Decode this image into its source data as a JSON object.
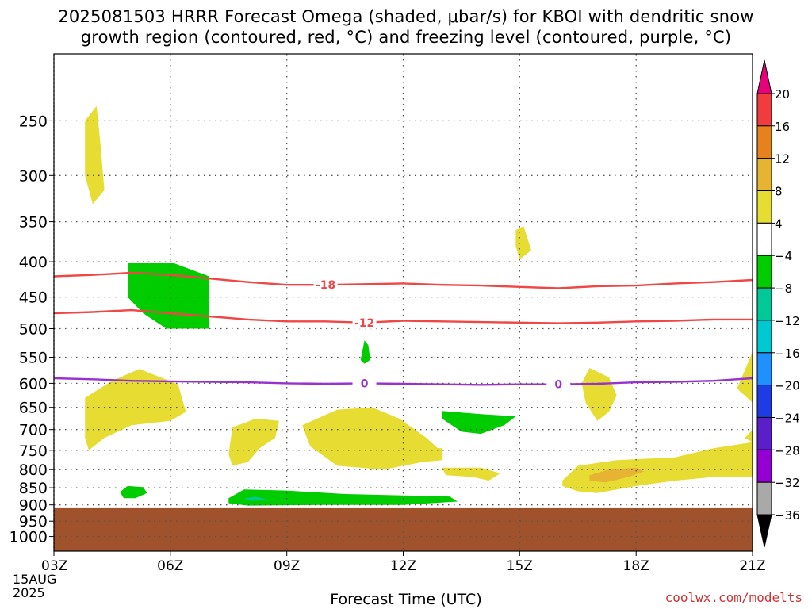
{
  "title_line1": "2025081503 HRRR Forecast Omega (shaded, μbar/s) for KBOI with dendritic snow",
  "title_line2": "growth region (contoured, red, °C) and freezing level (contoured, purple, °C)",
  "credit": "coolwx.com/modelts",
  "chart_data": {
    "type": "area",
    "xlabel": "Forecast Time (UTC)",
    "x_ticks": [
      {
        "hour": 3,
        "label": "03Z"
      },
      {
        "hour": 6,
        "label": "06Z"
      },
      {
        "hour": 9,
        "label": "09Z"
      },
      {
        "hour": 12,
        "label": "12Z"
      },
      {
        "hour": 15,
        "label": "15Z"
      },
      {
        "hour": 18,
        "label": "18Z"
      },
      {
        "hour": 21,
        "label": "21Z"
      }
    ],
    "date_label_1": "15AUG",
    "date_label_2": "2025",
    "xlim": [
      3,
      21
    ],
    "ylim": [
      1050,
      200
    ],
    "y_ticks": [
      250,
      300,
      350,
      400,
      450,
      500,
      550,
      600,
      650,
      700,
      750,
      800,
      850,
      900,
      950,
      1000
    ],
    "grid": true,
    "terrain": {
      "top_hPa": 910,
      "color": "#a0522d"
    },
    "colorbar": {
      "levels": [
        -36,
        -32,
        -28,
        -24,
        -20,
        -16,
        -12,
        -8,
        -4,
        4,
        8,
        12,
        16,
        20
      ],
      "colors": [
        "#000000",
        "#a9a9a9",
        "#9400d3",
        "#5a1fc8",
        "#1e3ce6",
        "#1e90ff",
        "#00c8d2",
        "#00c896",
        "#00cc00",
        "#ffffff",
        "#e6dc32",
        "#e6b432",
        "#e6821e",
        "#f03c3c",
        "#e6007a"
      ]
    },
    "omega_regions": [
      {
        "level": "4-8",
        "color": "#e6dc32",
        "points": [
          [
            3.8,
            250
          ],
          [
            4.1,
            238
          ],
          [
            4.2,
            270
          ],
          [
            4.3,
            315
          ],
          [
            4.0,
            330
          ],
          [
            3.8,
            300
          ]
        ]
      },
      {
        "level": "4-8",
        "color": "#e6dc32",
        "points": [
          [
            14.9,
            360
          ],
          [
            15.1,
            355
          ],
          [
            15.3,
            385
          ],
          [
            15.0,
            397
          ],
          [
            14.9,
            380
          ]
        ]
      },
      {
        "level": "-4to-8",
        "color": "#00cc00",
        "points": [
          [
            4.9,
            402
          ],
          [
            6.1,
            402
          ],
          [
            7.0,
            420
          ],
          [
            7.0,
            500
          ],
          [
            5.9,
            500
          ],
          [
            5.3,
            475
          ],
          [
            4.9,
            450
          ]
        ]
      },
      {
        "level": "-4to-8",
        "color": "#00cc00",
        "points": [
          [
            11.0,
            520
          ],
          [
            11.1,
            528
          ],
          [
            11.15,
            555
          ],
          [
            11.0,
            562
          ],
          [
            10.9,
            555
          ]
        ]
      },
      {
        "level": "4-8",
        "color": "#e6dc32",
        "points": [
          [
            3.8,
            630
          ],
          [
            4.5,
            595
          ],
          [
            5.2,
            572
          ],
          [
            6.2,
            602
          ],
          [
            6.4,
            660
          ],
          [
            6.0,
            680
          ],
          [
            5.0,
            690
          ],
          [
            4.3,
            720
          ],
          [
            3.9,
            750
          ],
          [
            3.8,
            720
          ]
        ]
      },
      {
        "level": "4-8",
        "color": "#e6dc32",
        "points": [
          [
            7.6,
            695
          ],
          [
            8.2,
            675
          ],
          [
            8.8,
            680
          ],
          [
            8.7,
            720
          ],
          [
            8.3,
            745
          ],
          [
            8.0,
            780
          ],
          [
            7.6,
            790
          ],
          [
            7.5,
            760
          ]
        ]
      },
      {
        "level": "4-8",
        "color": "#e6dc32",
        "points": [
          [
            9.4,
            690
          ],
          [
            10.3,
            655
          ],
          [
            11.2,
            650
          ],
          [
            11.9,
            675
          ],
          [
            12.6,
            720
          ],
          [
            13.0,
            755
          ],
          [
            13.0,
            775
          ],
          [
            12.5,
            780
          ],
          [
            11.5,
            800
          ],
          [
            10.3,
            790
          ],
          [
            9.6,
            740
          ]
        ]
      },
      {
        "level": "4-8",
        "color": "#e6dc32",
        "points": [
          [
            12.0,
            740
          ],
          [
            13.0,
            745
          ],
          [
            13.0,
            775
          ],
          [
            12.4,
            780
          ]
        ]
      },
      {
        "level": "-4to-8",
        "color": "#00cc00",
        "points": [
          [
            13.0,
            658
          ],
          [
            14.0,
            665
          ],
          [
            14.9,
            670
          ],
          [
            14.6,
            690
          ],
          [
            14.0,
            710
          ],
          [
            13.5,
            705
          ],
          [
            13.0,
            675
          ]
        ]
      },
      {
        "level": "4-8",
        "color": "#e6dc32",
        "points": [
          [
            13.0,
            795
          ],
          [
            14.0,
            795
          ],
          [
            14.5,
            810
          ],
          [
            14.2,
            830
          ],
          [
            13.8,
            820
          ],
          [
            13.1,
            815
          ]
        ]
      },
      {
        "level": "4-8",
        "color": "#e6dc32",
        "points": [
          [
            16.8,
            570
          ],
          [
            17.3,
            588
          ],
          [
            17.5,
            625
          ],
          [
            17.3,
            660
          ],
          [
            17.0,
            680
          ],
          [
            16.7,
            640
          ],
          [
            16.6,
            600
          ]
        ]
      },
      {
        "level": "4-8",
        "color": "#e6dc32",
        "points": [
          [
            16.1,
            830
          ],
          [
            16.5,
            790
          ],
          [
            17.5,
            775
          ],
          [
            19.0,
            768
          ],
          [
            20.0,
            745
          ],
          [
            21.0,
            730
          ],
          [
            21.0,
            820
          ],
          [
            20.0,
            820
          ],
          [
            19.0,
            830
          ],
          [
            18.0,
            845
          ],
          [
            17.0,
            865
          ],
          [
            16.5,
            860
          ],
          [
            16.1,
            845
          ]
        ]
      },
      {
        "level": "4-8",
        "color": "#e6dc32",
        "points": [
          [
            21.0,
            540
          ],
          [
            21.0,
            640
          ],
          [
            20.6,
            610
          ],
          [
            20.8,
            575
          ]
        ]
      },
      {
        "level": "4-8",
        "color": "#e6dc32",
        "points": [
          [
            20.8,
            720
          ],
          [
            21.0,
            700
          ],
          [
            21.0,
            730
          ]
        ]
      },
      {
        "level": "8-12",
        "color": "#e6b432",
        "points": [
          [
            16.8,
            815
          ],
          [
            17.3,
            800
          ],
          [
            18.0,
            795
          ],
          [
            18.2,
            805
          ],
          [
            17.8,
            820
          ],
          [
            17.2,
            835
          ],
          [
            16.8,
            830
          ]
        ]
      },
      {
        "level": "-4to-8",
        "color": "#00cc00",
        "points": [
          [
            4.7,
            862
          ],
          [
            4.9,
            845
          ],
          [
            5.3,
            848
          ],
          [
            5.4,
            865
          ],
          [
            5.1,
            880
          ],
          [
            4.8,
            880
          ]
        ]
      },
      {
        "level": "-4to-8",
        "color": "#00cc00",
        "points": [
          [
            7.5,
            880
          ],
          [
            7.9,
            855
          ],
          [
            9.0,
            858
          ],
          [
            10.5,
            868
          ],
          [
            12.0,
            872
          ],
          [
            13.2,
            875
          ],
          [
            13.4,
            890
          ],
          [
            12.0,
            900
          ],
          [
            10.0,
            900
          ],
          [
            8.0,
            902
          ],
          [
            7.5,
            895
          ]
        ]
      },
      {
        "level": "-8to-12",
        "color": "#00c896",
        "points": [
          [
            7.9,
            880
          ],
          [
            8.2,
            876
          ],
          [
            8.5,
            884
          ],
          [
            8.1,
            888
          ]
        ]
      }
    ],
    "contours": [
      {
        "label": "-18",
        "color": "#f04646",
        "points": [
          [
            3,
            420
          ],
          [
            4,
            418
          ],
          [
            5,
            415
          ],
          [
            6,
            418
          ],
          [
            7,
            423
          ],
          [
            8,
            428
          ],
          [
            9,
            432
          ],
          [
            10,
            432
          ],
          [
            11,
            431
          ],
          [
            12,
            430
          ],
          [
            13,
            432
          ],
          [
            14,
            433
          ],
          [
            15,
            435
          ],
          [
            16,
            437
          ],
          [
            17,
            434
          ],
          [
            18,
            433
          ],
          [
            19,
            430
          ],
          [
            20,
            428
          ],
          [
            21,
            425
          ]
        ],
        "label_at": 10
      },
      {
        "label": "-12",
        "color": "#f04646",
        "points": [
          [
            3,
            475
          ],
          [
            4,
            473
          ],
          [
            5,
            470
          ],
          [
            6,
            475
          ],
          [
            7,
            480
          ],
          [
            8,
            485
          ],
          [
            9,
            488
          ],
          [
            10,
            488
          ],
          [
            11,
            490
          ],
          [
            12,
            487
          ],
          [
            13,
            488
          ],
          [
            14,
            489
          ],
          [
            15,
            490
          ],
          [
            16,
            491
          ],
          [
            17,
            490
          ],
          [
            18,
            488
          ],
          [
            19,
            487
          ],
          [
            20,
            485
          ],
          [
            21,
            485
          ]
        ],
        "label_at": 11
      },
      {
        "label": "0",
        "color": "#9932cc",
        "points": [
          [
            3,
            590
          ],
          [
            4,
            592
          ],
          [
            5,
            595
          ],
          [
            6,
            596
          ],
          [
            7,
            597
          ],
          [
            8,
            598
          ],
          [
            9,
            600
          ],
          [
            10,
            601
          ],
          [
            11,
            600
          ],
          [
            12,
            601
          ],
          [
            13,
            602
          ],
          [
            14,
            603
          ],
          [
            15,
            602
          ],
          [
            16,
            602
          ],
          [
            17,
            601
          ],
          [
            18,
            598
          ],
          [
            19,
            597
          ],
          [
            20,
            595
          ],
          [
            21,
            590
          ]
        ],
        "label_at": 11,
        "label_at2": 16
      }
    ]
  }
}
